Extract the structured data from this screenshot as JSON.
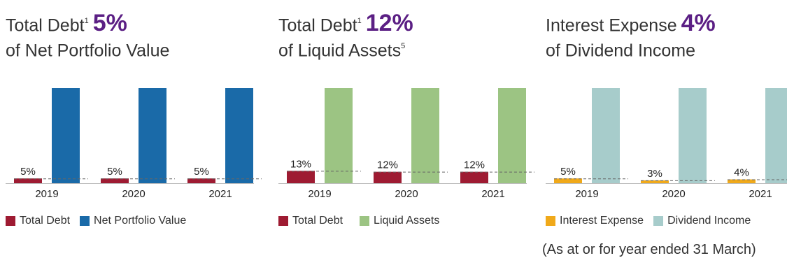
{
  "footnote": "(As at or for year ended 31 March)",
  "chart_data": [
    {
      "type": "bar",
      "title": {
        "prefix": "Total Debt",
        "superscript": "1",
        "highlight": "5%",
        "line2": "of Net Portfolio Value",
        "line2_superscript": ""
      },
      "categories": [
        "2019",
        "2020",
        "2021"
      ],
      "series": [
        {
          "name": "Total Debt",
          "color": "#9e1b32",
          "values": [
            5,
            5,
            5
          ]
        },
        {
          "name": "Net Portfolio Value",
          "color": "#1a6aa8",
          "values": [
            100,
            100,
            100
          ]
        }
      ],
      "data_labels": [
        "5%",
        "5%",
        "5%"
      ],
      "ylim": [
        0,
        100
      ],
      "legend": "bottom-left"
    },
    {
      "type": "bar",
      "title": {
        "prefix": "Total Debt",
        "superscript": "1",
        "highlight": "12%",
        "line2": "of Liquid Assets",
        "line2_superscript": "5"
      },
      "categories": [
        "2019",
        "2020",
        "2021"
      ],
      "series": [
        {
          "name": "Total Debt",
          "color": "#9e1b32",
          "values": [
            13,
            12,
            12
          ]
        },
        {
          "name": "Liquid Assets",
          "color": "#9cc483",
          "values": [
            100,
            100,
            100
          ]
        }
      ],
      "data_labels": [
        "13%",
        "12%",
        "12%"
      ],
      "ylim": [
        0,
        100
      ],
      "legend": "bottom-left"
    },
    {
      "type": "bar",
      "title": {
        "prefix": "Interest Expense",
        "superscript": "",
        "highlight": "4%",
        "line2": "of Dividend Income",
        "line2_superscript": ""
      },
      "categories": [
        "2019",
        "2020",
        "2021"
      ],
      "series": [
        {
          "name": "Interest Expense",
          "color": "#f0a91a",
          "values": [
            5,
            3,
            4
          ]
        },
        {
          "name": "Dividend Income",
          "color": "#a7cccb",
          "values": [
            100,
            100,
            100
          ]
        }
      ],
      "data_labels": [
        "5%",
        "3%",
        "4%"
      ],
      "ylim": [
        0,
        100
      ],
      "legend": "bottom-left"
    }
  ]
}
